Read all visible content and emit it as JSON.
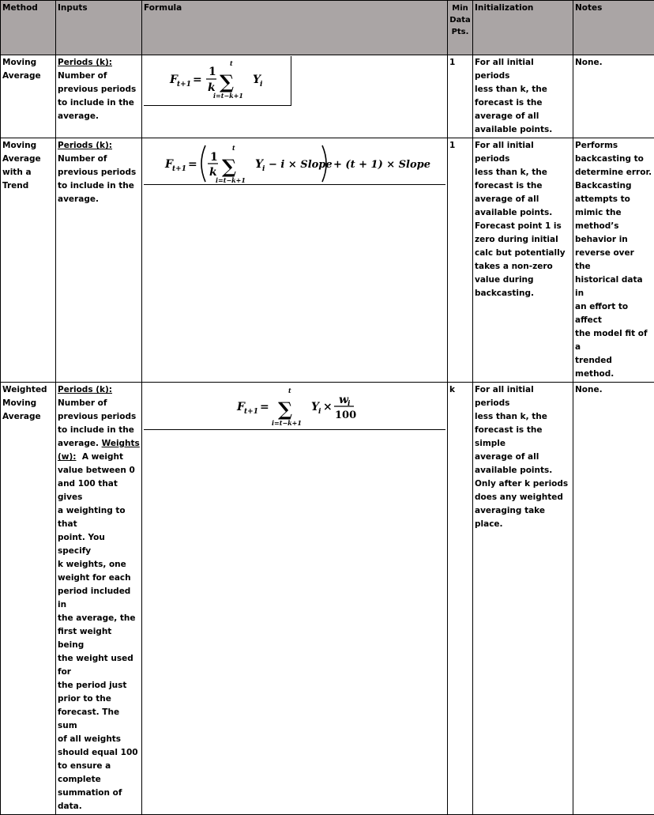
{
  "headers": {
    "method": "Method",
    "inputs": "Inputs",
    "formula": "Formula",
    "min_data_pts": [
      "Min",
      "Data",
      "Pts."
    ],
    "initialization": "Initialization",
    "notes": "Notes"
  },
  "rows": [
    {
      "method_lines": [
        "Moving",
        "Average"
      ],
      "inputs_param": "Periods (k):",
      "inputs_lines": [
        "Number of",
        "previous periods",
        "to include in the",
        "average."
      ],
      "min_pts": "1",
      "init_lines": [
        "For all initial periods",
        "less than k, the",
        "forecast is the",
        "average of all",
        "available points."
      ],
      "notes_lines": [
        "None."
      ]
    },
    {
      "method_lines": [
        "Moving",
        "Average",
        "with a",
        "Trend"
      ],
      "inputs_param": "Periods (k):",
      "inputs_lines": [
        "Number of",
        "previous periods",
        "to include in the",
        "average."
      ],
      "min_pts": "1",
      "init_lines": [
        "For all initial periods",
        "less than k, the",
        "forecast is the",
        "average of all",
        "available points.",
        "Forecast point 1 is",
        "zero during initial",
        "calc but potentially",
        "takes a non-zero",
        "value during",
        "backcasting."
      ],
      "notes_lines": [
        "Performs",
        "backcasting to",
        "determine error.",
        "Backcasting",
        "attempts to",
        "mimic the",
        "method’s",
        "behavior in",
        "reverse over the",
        "historical data in",
        "an effort to affect",
        "the model fit of a",
        "trended method."
      ]
    },
    {
      "method_lines": [
        "Weighted",
        "Moving",
        "Average"
      ],
      "inputs_param": "Periods (k):",
      "inputs_lines_a": [
        "Number of",
        "previous periods",
        "to include in the"
      ],
      "inputs_mixed_prefix": "average. ",
      "inputs_param2": "Weights",
      "inputs_param2b": "(w):",
      "inputs_lines_b": [
        "A weight",
        "value between 0",
        "and 100 that gives",
        "a weighting to that",
        "point.  You specify",
        "k weights, one",
        "weight for each",
        "period included in",
        "the average, the",
        "first weight being",
        "the weight used for",
        "the period just",
        "prior to the",
        "forecast.  The sum",
        "of all weights",
        "should equal 100",
        "to ensure a",
        "complete",
        "summation of",
        "data."
      ],
      "min_pts": "k",
      "init_lines": [
        "For all initial periods",
        "less than k, the",
        "forecast is the simple",
        "average of all",
        "available points.",
        "Only after k periods",
        "does any weighted",
        "averaging take place."
      ],
      "notes_lines": [
        "None."
      ]
    }
  ],
  "formulas": {
    "f1": {
      "lhs": "F",
      "lhs_sub": "t+1",
      "eq": "=",
      "frac_num": "1",
      "frac_den": "k",
      "sigma": "∑",
      "upper": "t",
      "lower": "i=t−k+1",
      "term": "Y",
      "term_sub": "i"
    },
    "f2": {
      "lhs": "F",
      "lhs_sub": "t+1",
      "eq": "=",
      "frac_num": "1",
      "frac_den": "k",
      "sigma": "∑",
      "upper": "t",
      "lower": "i=t−k+1",
      "term": "Y",
      "term_sub": "i",
      "minus_part": "− i × Slope",
      "plus_part": "+ (t + 1) × Slope"
    },
    "f3": {
      "lhs": "F",
      "lhs_sub": "t+1",
      "eq": "=",
      "sigma": "∑",
      "upper": "t",
      "lower": "i=t−k+1",
      "term": "Y",
      "term_sub": "i",
      "times": "×",
      "w_num": "w",
      "w_num_sub": "i",
      "w_den": "100"
    }
  }
}
